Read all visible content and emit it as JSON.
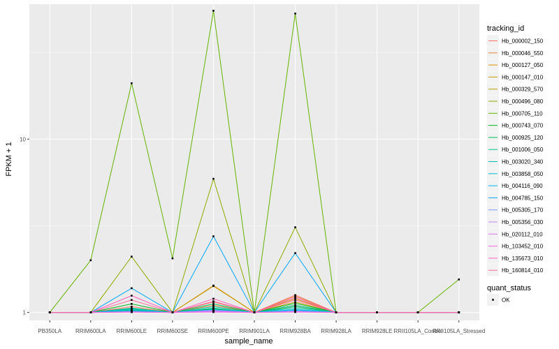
{
  "chart_data": {
    "type": "line",
    "xlabel": "sample_name",
    "ylabel": "FPKM + 1",
    "y_scale": "log10",
    "ylim": [
      0.9,
      60
    ],
    "y_ticks": [
      1,
      10
    ],
    "y_tick_labels": [
      "1",
      "10"
    ],
    "grid": true,
    "legend_position": "right",
    "categories": [
      "PB350LA",
      "RRIM600LA",
      "RRIM600LE",
      "RRIM600SE",
      "RRIM600PE",
      "RRIM901LA",
      "RRIM928BA",
      "RRIM928LA",
      "RRIM928LE",
      "RRII105LA_Control",
      "RRII105LA_Stressed"
    ],
    "color_legend": {
      "title": "tracking_id",
      "series": [
        {
          "name": "Hb_000002_150",
          "color": "#F8766D",
          "values": [
            1,
            1,
            1.08,
            1,
            1.15,
            1,
            1.26,
            1,
            1,
            1,
            1
          ]
        },
        {
          "name": "Hb_000046_550",
          "color": "#EC8239",
          "values": [
            1,
            1,
            1.02,
            1,
            1.1,
            1,
            1.24,
            1,
            1,
            1,
            1
          ]
        },
        {
          "name": "Hb_000127_050",
          "color": "#DB8E00",
          "values": [
            1,
            1,
            1.03,
            1,
            1.43,
            1,
            1.2,
            1,
            1,
            1,
            1
          ]
        },
        {
          "name": "Hb_000147_010",
          "color": "#C79800",
          "values": [
            1,
            1,
            1.01,
            1,
            1.42,
            1,
            1.15,
            1,
            1,
            1,
            1
          ]
        },
        {
          "name": "Hb_000329_570",
          "color": "#AEA200",
          "values": [
            1,
            1,
            1.02,
            1,
            1.05,
            1,
            1.1,
            1,
            1,
            1,
            1
          ]
        },
        {
          "name": "Hb_000496_080",
          "color": "#8FAA00",
          "values": [
            1,
            1,
            2.1,
            1,
            5.9,
            1,
            3.1,
            1,
            1,
            1,
            1
          ]
        },
        {
          "name": "Hb_000705_110",
          "color": "#64B200",
          "values": [
            1,
            2,
            21,
            2.05,
            55,
            1,
            53,
            1,
            1,
            1,
            1.55
          ]
        },
        {
          "name": "Hb_000743_070",
          "color": "#00B81B",
          "values": [
            1,
            1,
            1.12,
            1,
            1.05,
            1,
            1.13,
            1,
            1,
            1,
            1
          ]
        },
        {
          "name": "Hb_000925_120",
          "color": "#00BD5C",
          "values": [
            1,
            1,
            1.06,
            1,
            1.12,
            1,
            1.08,
            1,
            1,
            1,
            1
          ]
        },
        {
          "name": "Hb_001006_050",
          "color": "#00C08E",
          "values": [
            1,
            1,
            1.04,
            1,
            1.08,
            1,
            1.1,
            1,
            1,
            1,
            1
          ]
        },
        {
          "name": "Hb_003020_340",
          "color": "#00C1B7",
          "values": [
            1,
            1,
            1.03,
            1,
            1.06,
            1,
            1.06,
            1,
            1,
            1,
            1
          ]
        },
        {
          "name": "Hb_003858_050",
          "color": "#00BDD4",
          "values": [
            1,
            1,
            1.05,
            1,
            1.04,
            1,
            1.04,
            1,
            1,
            1,
            1
          ]
        },
        {
          "name": "Hb_004116_090",
          "color": "#00B5EE",
          "values": [
            1,
            1,
            1.02,
            1,
            1.02,
            1,
            1.03,
            1,
            1,
            1,
            1
          ]
        },
        {
          "name": "Hb_004785_150",
          "color": "#00A7FF",
          "values": [
            1,
            1,
            1.38,
            1,
            2.75,
            1,
            2.2,
            1,
            1,
            1,
            1
          ]
        },
        {
          "name": "Hb_005305_170",
          "color": "#7F96FF",
          "values": [
            1,
            1,
            1.01,
            1,
            1.03,
            1,
            1.02,
            1,
            1,
            1,
            1
          ]
        },
        {
          "name": "Hb_005356_030",
          "color": "#BC81FF",
          "values": [
            1,
            1,
            1.01,
            1,
            1.02,
            1,
            1.01,
            1,
            1,
            1,
            1
          ]
        },
        {
          "name": "Hb_020112_010",
          "color": "#E26EF7",
          "values": [
            1,
            1,
            1.005,
            1,
            1.01,
            1,
            1.01,
            1,
            1,
            1,
            1
          ]
        },
        {
          "name": "Hb_103452_010",
          "color": "#F863DF",
          "values": [
            1,
            1,
            1.005,
            1,
            1.005,
            1,
            1.005,
            1,
            1,
            1,
            1
          ]
        },
        {
          "name": "Hb_135673_010",
          "color": "#FF62BF",
          "values": [
            1,
            1,
            1.25,
            1,
            1.2,
            1,
            1.22,
            1,
            1,
            1,
            1
          ]
        },
        {
          "name": "Hb_160814_010",
          "color": "#FF6A9A",
          "values": [
            1,
            1,
            1.18,
            1,
            1.16,
            1,
            1.18,
            1,
            1,
            1,
            1
          ]
        }
      ]
    },
    "shape_legend": {
      "title": "quant_status",
      "items": [
        {
          "label": "OK"
        }
      ]
    }
  },
  "colors": {
    "panel_background": "#EBEBEB",
    "gridline": "#FFFFFF",
    "point": "#000000"
  }
}
